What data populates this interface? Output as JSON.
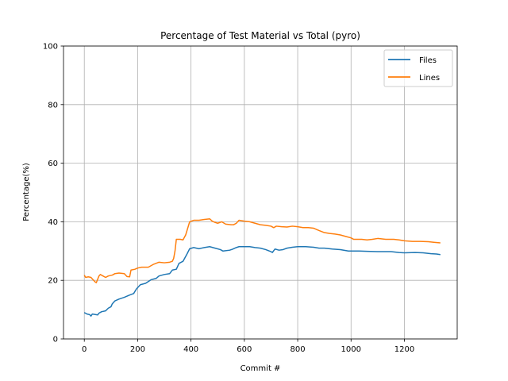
{
  "chart_data": {
    "type": "line",
    "title": "Percentage of Test Material vs Total (pyro)",
    "xlabel": "Commit #",
    "ylabel": "Percentage(%)",
    "xlim": [
      -78,
      1398
    ],
    "ylim": [
      0,
      100
    ],
    "xticks": [
      0,
      200,
      400,
      600,
      800,
      1000,
      1200
    ],
    "yticks": [
      0,
      20,
      40,
      60,
      80,
      100
    ],
    "grid": true,
    "legend_position": "top-right",
    "series": [
      {
        "name": "Files",
        "color": "#1f77b4",
        "points": [
          [
            0,
            9
          ],
          [
            10,
            8.5
          ],
          [
            20,
            8.3
          ],
          [
            25,
            7.8
          ],
          [
            30,
            8.5
          ],
          [
            50,
            8.2
          ],
          [
            55,
            8.8
          ],
          [
            65,
            9.3
          ],
          [
            80,
            9.6
          ],
          [
            90,
            10.5
          ],
          [
            100,
            11
          ],
          [
            105,
            12
          ],
          [
            115,
            13
          ],
          [
            130,
            13.6
          ],
          [
            150,
            14.2
          ],
          [
            170,
            15
          ],
          [
            185,
            15.5
          ],
          [
            195,
            17
          ],
          [
            210,
            18.5
          ],
          [
            230,
            19
          ],
          [
            250,
            20.2
          ],
          [
            270,
            20.7
          ],
          [
            280,
            21.5
          ],
          [
            300,
            22
          ],
          [
            320,
            22.3
          ],
          [
            330,
            23.5
          ],
          [
            345,
            23.8
          ],
          [
            355,
            25.8
          ],
          [
            370,
            26.5
          ],
          [
            385,
            29
          ],
          [
            395,
            30.8
          ],
          [
            410,
            31.2
          ],
          [
            430,
            30.8
          ],
          [
            450,
            31.2
          ],
          [
            470,
            31.5
          ],
          [
            490,
            31
          ],
          [
            510,
            30.5
          ],
          [
            520,
            30
          ],
          [
            545,
            30.3
          ],
          [
            555,
            30.6
          ],
          [
            570,
            31.2
          ],
          [
            580,
            31.5
          ],
          [
            600,
            31.5
          ],
          [
            620,
            31.5
          ],
          [
            640,
            31.2
          ],
          [
            660,
            31
          ],
          [
            680,
            30.5
          ],
          [
            700,
            29.8
          ],
          [
            705,
            29.5
          ],
          [
            715,
            30.7
          ],
          [
            730,
            30.3
          ],
          [
            745,
            30.5
          ],
          [
            760,
            31
          ],
          [
            780,
            31.3
          ],
          [
            800,
            31.5
          ],
          [
            830,
            31.5
          ],
          [
            860,
            31.3
          ],
          [
            880,
            31
          ],
          [
            900,
            31
          ],
          [
            930,
            30.7
          ],
          [
            960,
            30.5
          ],
          [
            990,
            30
          ],
          [
            1000,
            30
          ],
          [
            1030,
            30
          ],
          [
            1060,
            29.9
          ],
          [
            1100,
            29.8
          ],
          [
            1150,
            29.8
          ],
          [
            1180,
            29.5
          ],
          [
            1200,
            29.4
          ],
          [
            1240,
            29.5
          ],
          [
            1270,
            29.4
          ],
          [
            1300,
            29.1
          ],
          [
            1320,
            29
          ],
          [
            1335,
            28.8
          ]
        ]
      },
      {
        "name": "Lines",
        "color": "#ff7f0e",
        "points": [
          [
            0,
            21.8
          ],
          [
            5,
            21
          ],
          [
            15,
            21.2
          ],
          [
            25,
            21
          ],
          [
            30,
            20.5
          ],
          [
            40,
            19.5
          ],
          [
            45,
            19.2
          ],
          [
            55,
            21.5
          ],
          [
            60,
            22
          ],
          [
            70,
            21.5
          ],
          [
            80,
            21
          ],
          [
            90,
            21.5
          ],
          [
            105,
            21.8
          ],
          [
            115,
            22.3
          ],
          [
            130,
            22.5
          ],
          [
            150,
            22.3
          ],
          [
            160,
            21.3
          ],
          [
            170,
            21.2
          ],
          [
            175,
            23.5
          ],
          [
            190,
            23.8
          ],
          [
            200,
            24.2
          ],
          [
            215,
            24.5
          ],
          [
            240,
            24.5
          ],
          [
            260,
            25.5
          ],
          [
            280,
            26.2
          ],
          [
            300,
            26
          ],
          [
            320,
            26.2
          ],
          [
            330,
            26.5
          ],
          [
            335,
            27.5
          ],
          [
            340,
            30
          ],
          [
            345,
            34
          ],
          [
            360,
            34
          ],
          [
            370,
            33.8
          ],
          [
            380,
            35.5
          ],
          [
            395,
            40
          ],
          [
            410,
            40.5
          ],
          [
            430,
            40.5
          ],
          [
            450,
            40.8
          ],
          [
            470,
            41
          ],
          [
            480,
            40.2
          ],
          [
            490,
            39.8
          ],
          [
            500,
            39.5
          ],
          [
            515,
            40
          ],
          [
            530,
            39.2
          ],
          [
            550,
            39
          ],
          [
            560,
            39
          ],
          [
            570,
            39.5
          ],
          [
            580,
            40.5
          ],
          [
            600,
            40.2
          ],
          [
            620,
            40
          ],
          [
            640,
            39.5
          ],
          [
            660,
            39
          ],
          [
            680,
            38.8
          ],
          [
            700,
            38.5
          ],
          [
            710,
            38
          ],
          [
            720,
            38.5
          ],
          [
            740,
            38.3
          ],
          [
            760,
            38.2
          ],
          [
            780,
            38.5
          ],
          [
            800,
            38.3
          ],
          [
            820,
            38
          ],
          [
            840,
            38
          ],
          [
            860,
            37.8
          ],
          [
            880,
            37
          ],
          [
            900,
            36.3
          ],
          [
            920,
            36
          ],
          [
            940,
            35.8
          ],
          [
            960,
            35.5
          ],
          [
            980,
            35
          ],
          [
            1000,
            34.5
          ],
          [
            1010,
            34
          ],
          [
            1040,
            34
          ],
          [
            1060,
            33.8
          ],
          [
            1080,
            34
          ],
          [
            1100,
            34.3
          ],
          [
            1130,
            34
          ],
          [
            1160,
            34
          ],
          [
            1180,
            33.8
          ],
          [
            1200,
            33.5
          ],
          [
            1230,
            33.3
          ],
          [
            1260,
            33.3
          ],
          [
            1290,
            33.2
          ],
          [
            1310,
            33
          ],
          [
            1335,
            32.8
          ]
        ]
      }
    ]
  }
}
